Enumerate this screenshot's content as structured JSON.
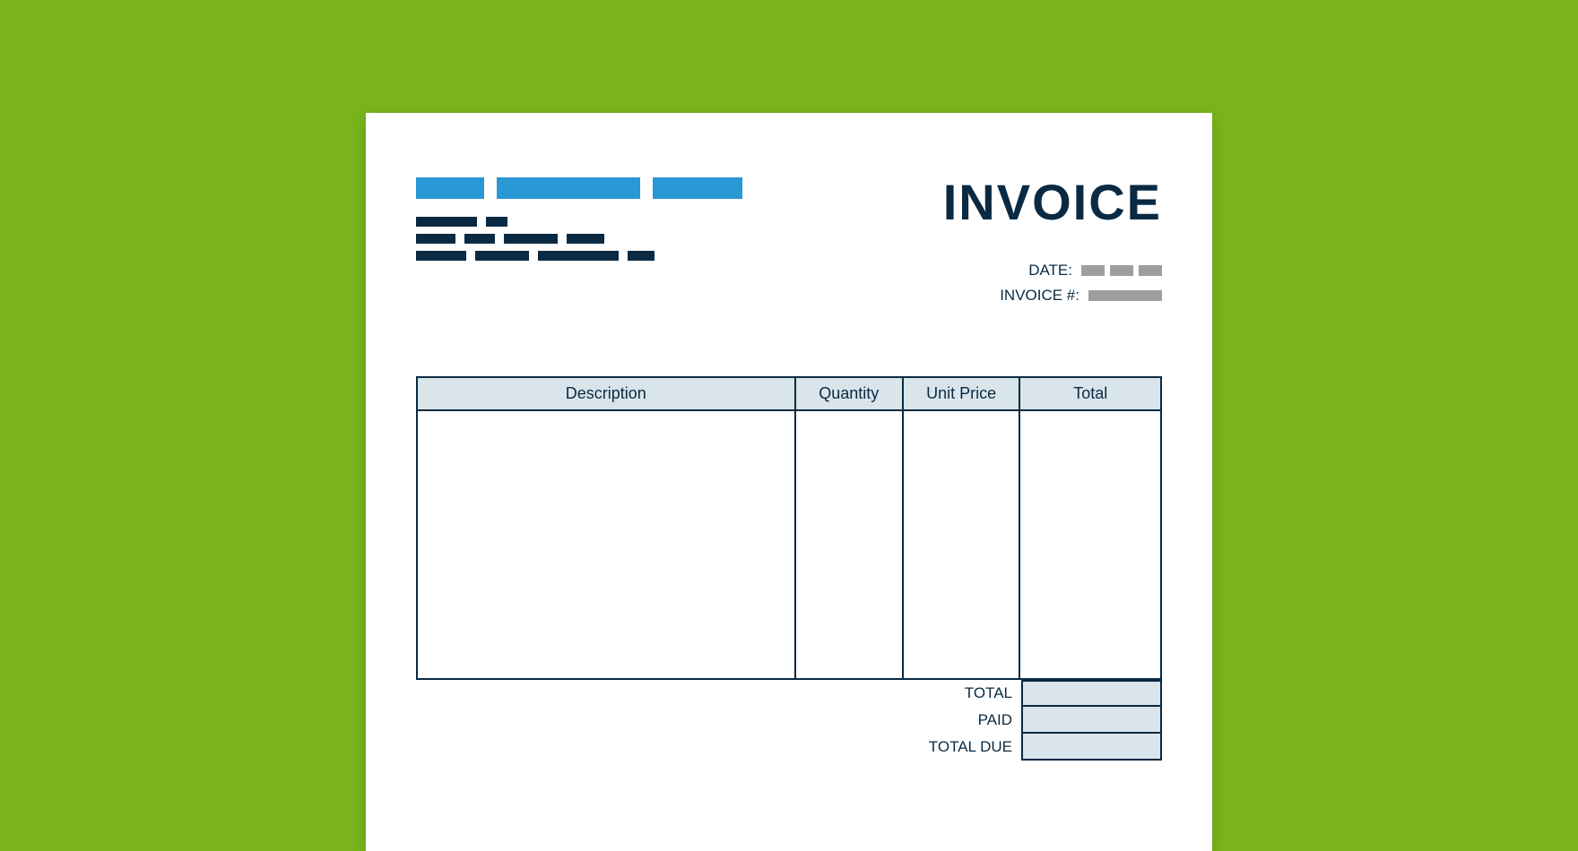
{
  "colors": {
    "background": "#7ab51d",
    "paper": "#ffffff",
    "brand_blue": "#2998d5",
    "navy": "#0a2a43",
    "grey_placeholder": "#9e9e9e",
    "table_header_fill": "#d9e5ea",
    "table_border": "#0a2a43",
    "totals_fill": "#d9e5ea"
  },
  "title": "INVOICE",
  "meta": {
    "date_label": "DATE:",
    "invoice_no_label": "INVOICE #:"
  },
  "columns": {
    "description": "Description",
    "quantity": "Quantity",
    "unit_price": "Unit Price",
    "total": "Total"
  },
  "col_widths": {
    "description": 420,
    "quantity": 120,
    "unit_price": 130,
    "total": 157
  },
  "totals": {
    "total": "TOTAL",
    "paid": "PAID",
    "total_due": "TOTAL DUE"
  },
  "placeholder_bars": {
    "blue_widths": [
      76,
      160,
      100
    ],
    "navy_rows": [
      [
        68,
        24
      ],
      [
        44,
        34,
        60,
        42
      ],
      [
        56,
        60,
        90,
        30
      ]
    ],
    "date_grey_widths": [
      26,
      26,
      26
    ],
    "invoice_grey_widths": [
      82
    ]
  },
  "table_row_height": 300
}
